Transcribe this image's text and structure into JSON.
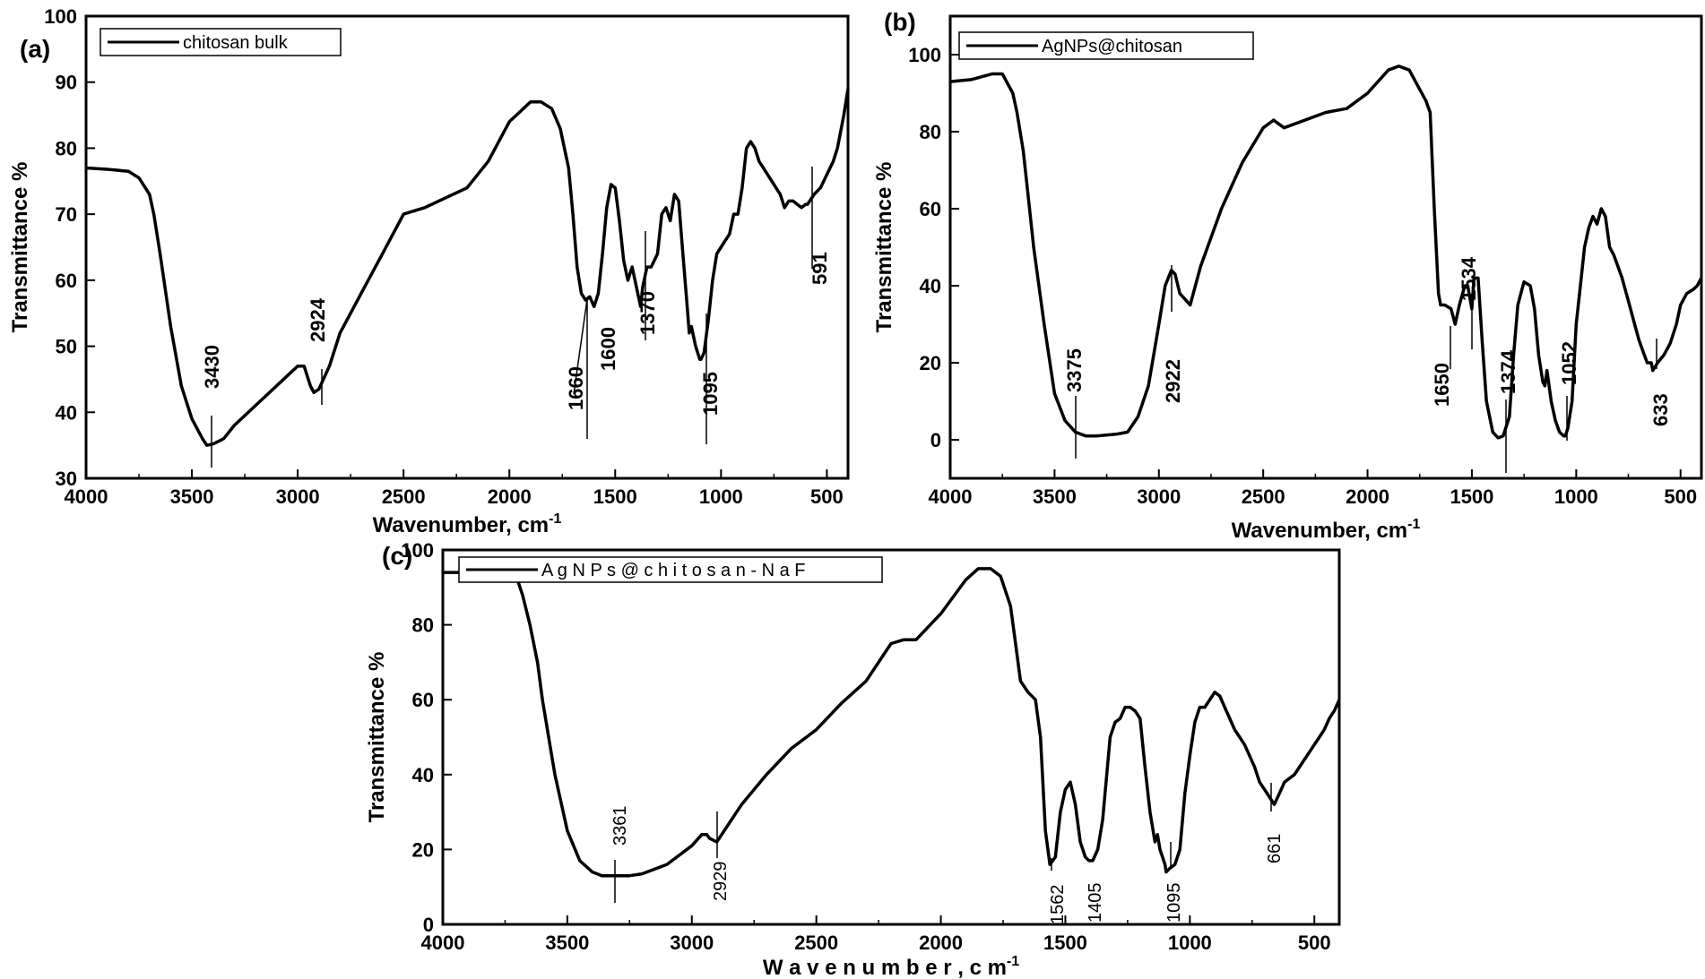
{
  "chart_data": [
    {
      "type": "line",
      "panel_label": "(a)",
      "xlabel": "Wavenumber, cm",
      "xlabel_sup": "-1",
      "ylabel": "Transmittance %",
      "xlim": [
        4000,
        400
      ],
      "ylim": [
        30,
        100
      ],
      "xticks": [
        4000,
        3500,
        3000,
        2500,
        2000,
        1500,
        1000,
        500
      ],
      "yticks": [
        30,
        40,
        50,
        60,
        70,
        80,
        90,
        100
      ],
      "grid": false,
      "legend_position": "top-left",
      "series": [
        {
          "name": "chitosan bulk",
          "x": [
            4000,
            3900,
            3800,
            3750,
            3700,
            3680,
            3650,
            3600,
            3550,
            3500,
            3450,
            3430,
            3400,
            3350,
            3300,
            3200,
            3100,
            3000,
            2970,
            2940,
            2924,
            2900,
            2850,
            2800,
            2700,
            2600,
            2500,
            2400,
            2200,
            2100,
            2000,
            1900,
            1850,
            1800,
            1760,
            1720,
            1700,
            1680,
            1660,
            1640,
            1620,
            1600,
            1580,
            1560,
            1540,
            1520,
            1500,
            1480,
            1460,
            1440,
            1420,
            1400,
            1380,
            1370,
            1350,
            1330,
            1300,
            1280,
            1260,
            1240,
            1220,
            1200,
            1180,
            1160,
            1150,
            1140,
            1120,
            1100,
            1095,
            1080,
            1060,
            1040,
            1020,
            1000,
            980,
            960,
            940,
            920,
            900,
            880,
            860,
            840,
            820,
            800,
            780,
            760,
            740,
            720,
            700,
            680,
            660,
            640,
            620,
            600,
            591,
            560,
            530,
            500,
            470,
            450,
            420,
            400
          ],
          "y": [
            77,
            76.8,
            76.5,
            75.5,
            73,
            70,
            64,
            53,
            44,
            39,
            36,
            35,
            35.2,
            36,
            38,
            41,
            44,
            47,
            47,
            44,
            43,
            43.5,
            47,
            52,
            58,
            64,
            70,
            71,
            74,
            78,
            84,
            87,
            87,
            86,
            83,
            77,
            70,
            62,
            58,
            57,
            57.5,
            56,
            58,
            64,
            71,
            74.5,
            74,
            69,
            63,
            60,
            62,
            59,
            56,
            59,
            62,
            62,
            64,
            70,
            71,
            69,
            73,
            72,
            64,
            56,
            52,
            53,
            50,
            48,
            48,
            49,
            54,
            60,
            64,
            65,
            66,
            67,
            70,
            70,
            74,
            80,
            81,
            80,
            78,
            77,
            76,
            75,
            74,
            73,
            71,
            72,
            72,
            71.5,
            71,
            71.5,
            71.5,
            73,
            74,
            76,
            78,
            80,
            85,
            89
          ]
        }
      ],
      "annotations": [
        {
          "label": "3430",
          "x": 3430
        },
        {
          "label": "2924",
          "x": 2924
        },
        {
          "label": "1660",
          "x": 1660
        },
        {
          "label": "1600",
          "x": 1600
        },
        {
          "label": "1370",
          "x": 1370
        },
        {
          "label": "1095",
          "x": 1095
        },
        {
          "label": "591",
          "x": 591
        }
      ]
    },
    {
      "type": "line",
      "panel_label": "(b)",
      "xlabel": "Wavenumber, cm",
      "xlabel_sup": "-1",
      "ylabel": "Transmittance %",
      "xlim": [
        4000,
        400
      ],
      "ylim": [
        -10,
        110
      ],
      "xticks": [
        4000,
        3500,
        3000,
        2500,
        2000,
        1500,
        1000,
        500
      ],
      "yticks": [
        0,
        20,
        40,
        60,
        80,
        100
      ],
      "grid": false,
      "legend_position": "top-left",
      "series": [
        {
          "name": "AgNPs@chitosan",
          "x": [
            4000,
            3900,
            3800,
            3750,
            3700,
            3680,
            3650,
            3620,
            3600,
            3550,
            3500,
            3450,
            3400,
            3375,
            3350,
            3300,
            3200,
            3150,
            3100,
            3050,
            3000,
            2970,
            2940,
            2922,
            2900,
            2850,
            2800,
            2700,
            2600,
            2500,
            2450,
            2400,
            2300,
            2200,
            2100,
            2000,
            1900,
            1850,
            1800,
            1760,
            1720,
            1700,
            1680,
            1660,
            1650,
            1630,
            1600,
            1580,
            1560,
            1534,
            1520,
            1500,
            1490,
            1470,
            1450,
            1430,
            1400,
            1374,
            1350,
            1320,
            1300,
            1280,
            1250,
            1220,
            1200,
            1180,
            1160,
            1150,
            1140,
            1130,
            1120,
            1100,
            1080,
            1060,
            1052,
            1040,
            1020,
            1000,
            980,
            960,
            940,
            920,
            900,
            880,
            860,
            840,
            820,
            800,
            780,
            760,
            740,
            720,
            700,
            680,
            660,
            640,
            633,
            610,
            580,
            550,
            520,
            500,
            470,
            440,
            420,
            400
          ],
          "y": [
            93,
            93.5,
            95,
            95,
            90,
            85,
            75,
            60,
            50,
            30,
            12,
            5,
            2,
            1.5,
            1,
            1,
            1.5,
            2,
            6,
            14,
            30,
            40,
            44,
            43,
            38,
            35,
            45,
            60,
            72,
            81,
            83,
            81,
            83,
            85,
            86,
            90,
            96,
            97,
            96,
            92,
            88,
            85,
            60,
            38,
            35,
            35,
            34,
            30,
            35,
            40,
            40,
            34,
            42,
            42,
            25,
            10,
            2,
            0.5,
            1,
            6,
            22,
            35,
            41,
            40,
            34,
            22,
            15,
            14,
            18,
            14,
            10,
            5,
            2,
            1,
            1,
            3,
            10,
            30,
            40,
            50,
            55,
            58,
            56,
            60,
            58,
            50,
            48,
            45,
            42,
            38,
            34,
            30,
            26,
            23,
            20,
            20,
            18,
            20,
            22,
            25,
            30,
            35,
            38,
            39,
            40,
            42
          ]
        }
      ],
      "annotations": [
        {
          "label": "3375",
          "x": 3375
        },
        {
          "label": "2922",
          "x": 2922
        },
        {
          "label": "1650",
          "x": 1650
        },
        {
          "label": "1534",
          "x": 1534
        },
        {
          "label": "1374",
          "x": 1374
        },
        {
          "label": "1052",
          "x": 1052
        },
        {
          "label": "633",
          "x": 633
        }
      ]
    },
    {
      "type": "line",
      "panel_label": "(c)",
      "xlabel": "W a v e n u m b e r ,  c m",
      "xlabel_sup": "-1",
      "ylabel": "Transmittance %",
      "xlim": [
        4000,
        400
      ],
      "ylim": [
        0,
        100
      ],
      "xticks": [
        4000,
        3500,
        3000,
        2500,
        2000,
        1500,
        1000,
        500
      ],
      "yticks": [
        0,
        20,
        40,
        60,
        80,
        100
      ],
      "grid": false,
      "legend_position": "top-left",
      "series": [
        {
          "name": "A g N P s @  c h i t o s a n - N a F",
          "x": [
            4000,
            3900,
            3800,
            3750,
            3700,
            3680,
            3650,
            3620,
            3600,
            3550,
            3500,
            3450,
            3400,
            3361,
            3300,
            3250,
            3200,
            3100,
            3000,
            2960,
            2940,
            2929,
            2900,
            2800,
            2700,
            2600,
            2500,
            2400,
            2300,
            2250,
            2200,
            2150,
            2100,
            2000,
            1900,
            1850,
            1800,
            1760,
            1720,
            1700,
            1680,
            1650,
            1620,
            1600,
            1580,
            1562,
            1540,
            1520,
            1500,
            1480,
            1460,
            1440,
            1420,
            1405,
            1390,
            1370,
            1350,
            1320,
            1300,
            1280,
            1260,
            1240,
            1220,
            1200,
            1180,
            1160,
            1140,
            1130,
            1120,
            1100,
            1095,
            1080,
            1060,
            1040,
            1020,
            1000,
            980,
            960,
            940,
            920,
            900,
            880,
            860,
            840,
            820,
            800,
            780,
            760,
            740,
            720,
            700,
            680,
            661,
            640,
            620,
            600,
            580,
            560,
            540,
            520,
            500,
            480,
            460,
            440,
            420,
            400
          ],
          "y": [
            94,
            94,
            95,
            93,
            92,
            88,
            80,
            70,
            60,
            40,
            25,
            17,
            14,
            13,
            13,
            13,
            13.5,
            16,
            21,
            24,
            24,
            23,
            22,
            32,
            40,
            47,
            52,
            59,
            65,
            70,
            75,
            76,
            76,
            83,
            92,
            95,
            95,
            93,
            85,
            75,
            65,
            62,
            60,
            50,
            25,
            16,
            18,
            30,
            36,
            38,
            32,
            22,
            18,
            17,
            17,
            20,
            28,
            50,
            54,
            55,
            58,
            58,
            57,
            55,
            42,
            30,
            22,
            24,
            20,
            16,
            14,
            15,
            16,
            20,
            35,
            45,
            54,
            58,
            58,
            60,
            62,
            61,
            58,
            55,
            52,
            50,
            48,
            45,
            42,
            38,
            36,
            34,
            32,
            35,
            38,
            39,
            40,
            42,
            44,
            46,
            48,
            50,
            52,
            55,
            57,
            60
          ]
        }
      ],
      "annotations": [
        {
          "label": "3361",
          "x": 3361
        },
        {
          "label": "2929",
          "x": 2929
        },
        {
          "label": "1562",
          "x": 1562
        },
        {
          "label": "1405",
          "x": 1405
        },
        {
          "label": "1095",
          "x": 1095
        },
        {
          "label": "661",
          "x": 661
        }
      ]
    }
  ]
}
